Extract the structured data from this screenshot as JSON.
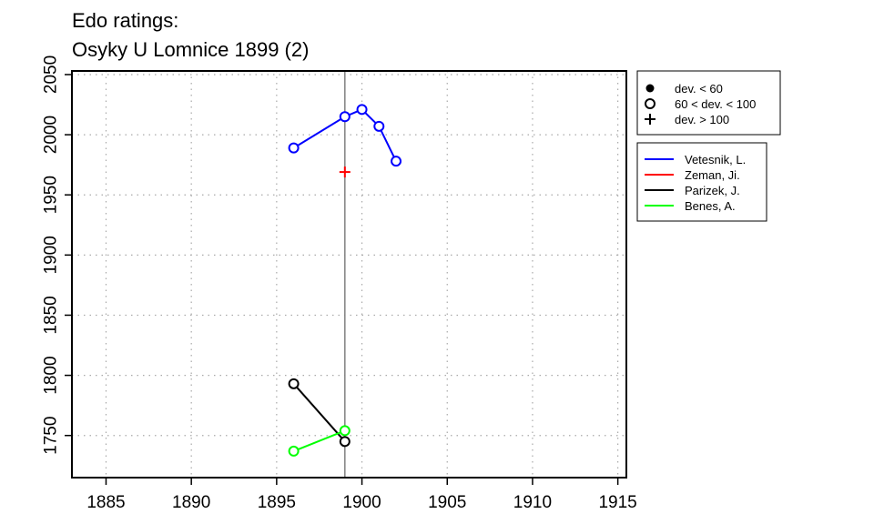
{
  "chart_data": {
    "type": "line",
    "title": "Edo ratings:",
    "subtitle": "Osyky U Lomnice 1899 (2)",
    "xlabel": "",
    "ylabel": "",
    "xlim": [
      1883,
      1915.5
    ],
    "ylim": [
      1715,
      2053
    ],
    "x_ticks": [
      1885,
      1890,
      1895,
      1900,
      1905,
      1910,
      1915
    ],
    "y_ticks": [
      1750,
      1800,
      1850,
      1900,
      1950,
      2000,
      2050
    ],
    "grid": true,
    "reference_line": {
      "x": 1899,
      "color": "#808080"
    },
    "series": [
      {
        "name": "Vetesnik, L.",
        "color": "#0000ff",
        "points": [
          {
            "x": 1896,
            "y": 1989,
            "marker": "open-circle"
          },
          {
            "x": 1899,
            "y": 2015,
            "marker": "open-circle"
          },
          {
            "x": 1900,
            "y": 2021,
            "marker": "open-circle"
          },
          {
            "x": 1901,
            "y": 2007,
            "marker": "open-circle"
          },
          {
            "x": 1902,
            "y": 1978,
            "marker": "open-circle"
          }
        ]
      },
      {
        "name": "Zeman, Ji.",
        "color": "#ff0000",
        "points": [
          {
            "x": 1899,
            "y": 1969,
            "marker": "plus"
          }
        ]
      },
      {
        "name": "Parizek, J.",
        "color": "#000000",
        "points": [
          {
            "x": 1896,
            "y": 1793,
            "marker": "open-circle"
          },
          {
            "x": 1899,
            "y": 1745,
            "marker": "open-circle"
          }
        ]
      },
      {
        "name": "Benes, A.",
        "color": "#00ff00",
        "points": [
          {
            "x": 1896,
            "y": 1737,
            "marker": "open-circle"
          },
          {
            "x": 1899,
            "y": 1754,
            "marker": "open-circle"
          }
        ]
      }
    ],
    "marker_legend": [
      {
        "label": "dev. < 60",
        "marker": "filled-circle"
      },
      {
        "label": "60 < dev. < 100",
        "marker": "open-circle"
      },
      {
        "label": "dev. > 100",
        "marker": "plus"
      }
    ],
    "legend_placement": "right-top"
  }
}
